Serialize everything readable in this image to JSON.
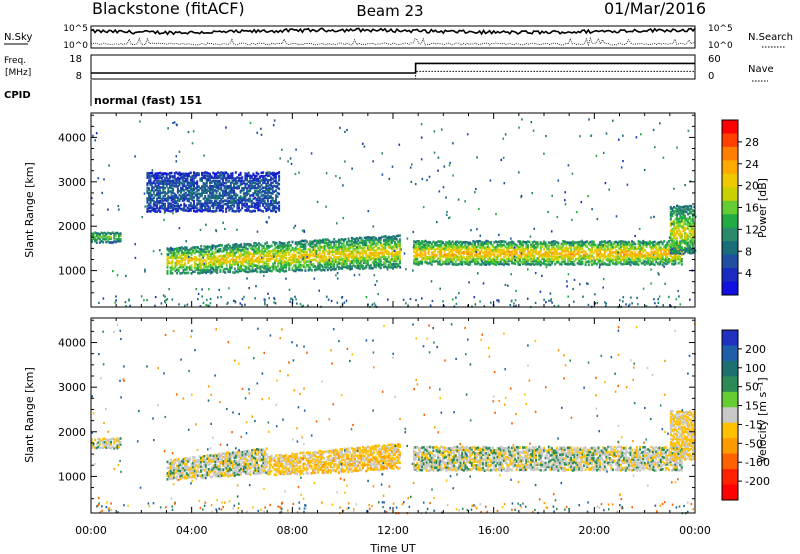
{
  "header": {
    "station": "Blackstone (fitACF)",
    "beam": "Beam 23",
    "date": "01/Mar/2016"
  },
  "summary": {
    "nsky_label": "N.Sky",
    "nsearch_label": "N.Search",
    "noise_ticks": [
      "10^5",
      "10^0"
    ],
    "freq_label_1": "Freq.",
    "freq_label_2": "[MHz]",
    "freq_ticks": [
      "18",
      "8"
    ],
    "nave_label": "Nave",
    "nave_ticks": [
      "60",
      "0"
    ],
    "cpid_label": "CPID",
    "cpid_value": "normal (fast) 151"
  },
  "colorbars": {
    "power": {
      "label": "Power [dB]",
      "ticks": [
        "28",
        "24",
        "20",
        "16",
        "12",
        "8",
        "4"
      ],
      "colors": [
        "#ff0000",
        "#ff4000",
        "#ff8000",
        "#ffaa00",
        "#f0c800",
        "#c8d000",
        "#66cc33",
        "#22aa44",
        "#2a8a6a",
        "#1a6e7a",
        "#1e4fa0",
        "#1a2cc0",
        "#1010e0"
      ]
    },
    "velocity": {
      "label": "Velocity [m s⁻¹]",
      "ticks": [
        "200",
        "100",
        "50",
        "15",
        "-15",
        "-50",
        "-100",
        "-200"
      ],
      "colors": [
        "#2030c0",
        "#1f5fa8",
        "#1e7070",
        "#2e8b57",
        "#66cc33",
        "#c8c8c8",
        "#ffc000",
        "#ff9900",
        "#ff6000",
        "#ff2000",
        "#ff0000"
      ]
    }
  },
  "chart_data": {
    "type": "heatmap",
    "xlabel": "Time UT",
    "ylabel": "Slant Range [km]",
    "x_ticks": [
      "00:00",
      "04:00",
      "08:00",
      "12:00",
      "16:00",
      "20:00",
      "00:00"
    ],
    "y_ticks": [
      "4000",
      "3000",
      "2000",
      "1000"
    ],
    "xlim_hours": [
      0,
      24
    ],
    "ylim_km": [
      180,
      4550
    ],
    "summary_panels": {
      "frequency_mhz_segments": [
        {
          "start_hour": 0,
          "end_hour": 12.9,
          "value": 10.5
        },
        {
          "start_hour": 12.9,
          "end_hour": 24,
          "value": 14.5
        }
      ],
      "nave_segments": [
        {
          "start_hour": 0,
          "end_hour": 12.9,
          "value": 0
        },
        {
          "start_hour": 12.9,
          "end_hour": 24,
          "value": 19
        }
      ]
    },
    "power_panel_bands": [
      {
        "name": "early band",
        "start_hour": 0.0,
        "end_hour": 1.2,
        "range_km": [
          1650,
          1900
        ],
        "power_db": 14
      },
      {
        "name": "main band",
        "start_hour": 3.0,
        "end_hour": 12.3,
        "range_km": [
          950,
          1750
        ],
        "power_db": 19
      },
      {
        "name": "far scatter",
        "start_hour": 2.2,
        "end_hour": 7.5,
        "range_km": [
          2350,
          3250
        ],
        "power_db": 6
      },
      {
        "name": "afternoon band",
        "start_hour": 12.8,
        "end_hour": 23.5,
        "range_km": [
          1150,
          1700
        ],
        "power_db": 21
      },
      {
        "name": "late rise",
        "start_hour": 23.0,
        "end_hour": 24.0,
        "range_km": [
          1400,
          2500
        ],
        "power_db": 18
      }
    ],
    "velocity_panel_bands": [
      {
        "name": "early band",
        "start_hour": 0.0,
        "end_hour": 1.2,
        "range_km": [
          1650,
          1900
        ],
        "velocity_ms": 0
      },
      {
        "name": "main band west",
        "start_hour": 3.0,
        "end_hour": 7.0,
        "range_km": [
          950,
          1600
        ],
        "velocity_ms": 0
      },
      {
        "name": "main band east",
        "start_hour": 7.0,
        "end_hour": 12.3,
        "range_km": [
          1050,
          1700
        ],
        "velocity_ms": -30
      },
      {
        "name": "afternoon band",
        "start_hour": 12.8,
        "end_hour": 23.5,
        "range_km": [
          1150,
          1700
        ],
        "velocity_ms": 0
      },
      {
        "name": "late rise",
        "start_hour": 23.0,
        "end_hour": 24.0,
        "range_km": [
          1400,
          2500
        ],
        "velocity_ms": -20
      }
    ]
  }
}
